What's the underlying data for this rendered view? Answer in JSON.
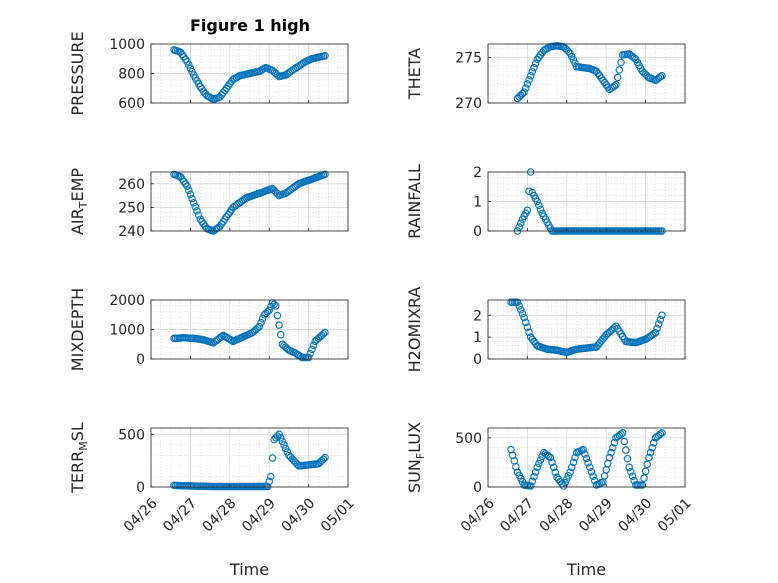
{
  "window": {
    "title": "Figure 1 high"
  },
  "chart_data": [
    {
      "type": "scatter",
      "title": "Figure 1 high",
      "ylabel": "PRESSURE",
      "ylim": [
        600,
        1000
      ],
      "yticks": [
        600,
        800,
        1000
      ],
      "x": [
        "04/26 14:00",
        "04/26 18:00",
        "04/26 22:00",
        "04/27 02:00",
        "04/27 06:00",
        "04/27 10:00",
        "04/27 14:00",
        "04/27 18:00",
        "04/27 22:00",
        "04/28 02:00",
        "04/28 06:00",
        "04/28 10:00",
        "04/28 14:00",
        "04/28 18:00",
        "04/28 22:00",
        "04/29 02:00",
        "04/29 06:00",
        "04/29 10:00",
        "04/29 14:00",
        "04/29 18:00",
        "04/29 22:00",
        "04/30 02:00",
        "04/30 06:00",
        "04/30 10:00"
      ],
      "values": [
        960,
        945,
        880,
        790,
        710,
        650,
        625,
        640,
        700,
        760,
        785,
        795,
        805,
        815,
        840,
        820,
        780,
        790,
        820,
        850,
        880,
        900,
        910,
        920
      ]
    },
    {
      "type": "scatter",
      "ylabel": "THETA",
      "ylim": [
        270,
        276.5
      ],
      "yticks": [
        270,
        275
      ],
      "x": [
        "04/26 18:00",
        "04/26 22:00",
        "04/27 02:00",
        "04/27 06:00",
        "04/27 10:00",
        "04/27 14:00",
        "04/27 18:00",
        "04/27 22:00",
        "04/28 02:00",
        "04/28 06:00",
        "04/28 10:00",
        "04/28 14:00",
        "04/28 18:00",
        "04/28 22:00",
        "04/29 02:00",
        "04/29 06:00",
        "04/29 10:00",
        "04/29 14:00",
        "04/29 18:00",
        "04/29 22:00",
        "04/30 02:00",
        "04/30 06:00",
        "04/30 10:00"
      ],
      "values": [
        270.5,
        271.2,
        273.0,
        274.8,
        275.8,
        276.2,
        276.3,
        276.2,
        275.5,
        274.0,
        273.9,
        273.8,
        273.5,
        272.5,
        271.5,
        272.0,
        275.3,
        275.4,
        274.8,
        273.5,
        272.8,
        272.5,
        273.0
      ]
    },
    {
      "type": "scatter",
      "ylabel": "AIR_TEMP",
      "ylim": [
        240,
        265
      ],
      "yticks": [
        240,
        250,
        260
      ],
      "x": [
        "04/26 14:00",
        "04/26 18:00",
        "04/26 22:00",
        "04/27 02:00",
        "04/27 06:00",
        "04/27 10:00",
        "04/27 14:00",
        "04/27 18:00",
        "04/27 22:00",
        "04/28 02:00",
        "04/28 06:00",
        "04/28 10:00",
        "04/28 14:00",
        "04/28 18:00",
        "04/28 22:00",
        "04/29 02:00",
        "04/29 06:00",
        "04/29 10:00",
        "04/29 14:00",
        "04/29 18:00",
        "04/29 22:00",
        "04/30 02:00",
        "04/30 06:00",
        "04/30 10:00"
      ],
      "values": [
        264,
        263,
        259,
        252,
        245,
        241,
        240,
        242,
        246,
        250,
        252,
        254,
        255,
        256,
        257,
        258,
        255,
        256,
        258,
        260,
        261,
        262,
        263,
        264
      ]
    },
    {
      "type": "scatter",
      "ylabel": "RAINFALL",
      "ylim": [
        0,
        2
      ],
      "yticks": [
        0,
        1,
        2
      ],
      "x": [
        "04/26 18:00",
        "04/26 21:00",
        "04/27 00:00",
        "04/27 02:00",
        "04/27 03:00",
        "04/27 06:00",
        "04/27 09:00",
        "04/27 12:00",
        "04/27 15:00",
        "04/28 00:00",
        "04/28 12:00",
        "04/29 00:00",
        "04/29 12:00",
        "04/30 00:00",
        "04/30 10:00"
      ],
      "values": [
        0,
        0.4,
        0.7,
        2.0,
        1.3,
        1.0,
        0.6,
        0.3,
        0,
        0,
        0,
        0,
        0,
        0,
        0
      ]
    },
    {
      "type": "scatter",
      "ylabel": "MIXDEPTH",
      "ylim": [
        0,
        2000
      ],
      "yticks": [
        0,
        1000,
        2000
      ],
      "x": [
        "04/26 14:00",
        "04/26 20:00",
        "04/27 02:00",
        "04/27 08:00",
        "04/27 14:00",
        "04/27 20:00",
        "04/28 02:00",
        "04/28 08:00",
        "04/28 14:00",
        "04/28 18:00",
        "04/28 21:00",
        "04/29 00:00",
        "04/29 02:00",
        "04/29 04:00",
        "04/29 08:00",
        "04/29 12:00",
        "04/29 16:00",
        "04/29 20:00",
        "04/30 00:00",
        "04/30 04:00",
        "04/30 10:00"
      ],
      "values": [
        700,
        720,
        700,
        650,
        550,
        800,
        600,
        750,
        900,
        1100,
        1500,
        1650,
        1900,
        1800,
        500,
        300,
        200,
        50,
        50,
        600,
        900
      ]
    },
    {
      "type": "scatter",
      "ylabel": "H2OMIXRA",
      "ylim": [
        0,
        2.7
      ],
      "yticks": [
        0,
        1,
        2
      ],
      "x": [
        "04/26 14:00",
        "04/26 18:00",
        "04/26 22:00",
        "04/27 02:00",
        "04/27 06:00",
        "04/27 12:00",
        "04/27 18:00",
        "04/28 00:00",
        "04/28 06:00",
        "04/28 12:00",
        "04/28 18:00",
        "04/29 00:00",
        "04/29 06:00",
        "04/29 12:00",
        "04/29 18:00",
        "04/30 00:00",
        "04/30 06:00",
        "04/30 10:00"
      ],
      "values": [
        2.6,
        2.6,
        1.9,
        1.0,
        0.6,
        0.45,
        0.4,
        0.3,
        0.45,
        0.5,
        0.55,
        1.1,
        1.5,
        0.8,
        0.75,
        0.9,
        1.2,
        2.0
      ]
    },
    {
      "type": "scatter",
      "ylabel": "TERR_MSL",
      "ylim": [
        0,
        560
      ],
      "yticks": [
        0,
        500
      ],
      "x": [
        "04/26 14:00",
        "04/27 00:00",
        "04/27 12:00",
        "04/28 00:00",
        "04/28 12:00",
        "04/28 23:00",
        "04/29 01:00",
        "04/29 03:00",
        "04/29 06:00",
        "04/29 09:00",
        "04/29 12:00",
        "04/29 18:00",
        "04/30 00:00",
        "04/30 06:00",
        "04/30 10:00"
      ],
      "values": [
        15,
        10,
        5,
        5,
        5,
        5,
        100,
        450,
        500,
        400,
        300,
        200,
        210,
        220,
        280
      ]
    },
    {
      "type": "scatter",
      "ylabel": "SUN_FLUX",
      "ylim": [
        0,
        600
      ],
      "yticks": [
        0,
        500
      ],
      "x": [
        "04/26 14:00",
        "04/26 18:00",
        "04/26 22:00",
        "04/27 02:00",
        "04/27 06:00",
        "04/27 10:00",
        "04/27 14:00",
        "04/27 18:00",
        "04/27 22:00",
        "04/28 02:00",
        "04/28 06:00",
        "04/28 10:00",
        "04/28 14:00",
        "04/28 18:00",
        "04/28 22:00",
        "04/29 02:00",
        "04/29 06:00",
        "04/29 10:00",
        "04/29 14:00",
        "04/29 18:00",
        "04/29 22:00",
        "04/30 02:00",
        "04/30 06:00",
        "04/30 10:00"
      ],
      "values": [
        380,
        150,
        20,
        10,
        200,
        350,
        300,
        100,
        10,
        150,
        350,
        380,
        200,
        20,
        50,
        300,
        500,
        550,
        200,
        20,
        20,
        300,
        500,
        550
      ]
    }
  ],
  "xaxis": {
    "label": "Time",
    "ticks": [
      "04/26",
      "04/27",
      "04/28",
      "04/29",
      "04/30",
      "05/01"
    ],
    "range": [
      "04/26",
      "05/01"
    ]
  },
  "colors": {
    "marker": "#0072BD",
    "grid": "#d9d9d9",
    "axes": "#262626"
  }
}
